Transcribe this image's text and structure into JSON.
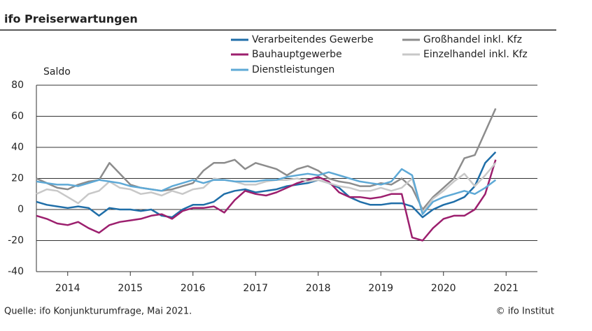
{
  "chart_data": {
    "type": "line",
    "title": "ifo Preiserwartungen",
    "y_label": "Saldo",
    "source": "Quelle: ifo Konjunkturumfrage, Mai 2021.",
    "credit": "© ifo Institut",
    "x": [
      2014.0,
      2014.167,
      2014.333,
      2014.5,
      2014.667,
      2014.833,
      2015.0,
      2015.167,
      2015.333,
      2015.5,
      2015.667,
      2015.833,
      2016.0,
      2016.167,
      2016.333,
      2016.5,
      2016.667,
      2016.833,
      2017.0,
      2017.167,
      2017.333,
      2017.5,
      2017.667,
      2017.833,
      2018.0,
      2018.167,
      2018.333,
      2018.5,
      2018.667,
      2018.833,
      2019.0,
      2019.167,
      2019.333,
      2019.5,
      2019.667,
      2019.833,
      2020.0,
      2020.167,
      2020.333,
      2020.5,
      2020.667,
      2020.833,
      2021.0,
      2021.167,
      2021.333
    ],
    "series": [
      {
        "name": "Verarbeitendes Gewerbe",
        "color": "#1f6ea8",
        "values": [
          5,
          3,
          2,
          1,
          2,
          1,
          -4,
          1,
          0,
          0,
          -1,
          0,
          -4,
          -5,
          0,
          3,
          3,
          5,
          10,
          12,
          13,
          11,
          12,
          13,
          15,
          16,
          17,
          19,
          17,
          14,
          8,
          5,
          3,
          3,
          4,
          4,
          2,
          -5,
          0,
          3,
          5,
          8,
          15,
          30,
          37
        ]
      },
      {
        "name": "Großhandel inkl. Kfz",
        "color": "#8c8c8c",
        "values": [
          20,
          17,
          14,
          13,
          16,
          18,
          19,
          30,
          23,
          16,
          14,
          13,
          12,
          13,
          15,
          17,
          25,
          30,
          30,
          32,
          26,
          30,
          28,
          26,
          22,
          26,
          28,
          25,
          20,
          18,
          17,
          15,
          15,
          17,
          16,
          20,
          14,
          0,
          8,
          14,
          20,
          33,
          35,
          50,
          65
        ]
      },
      {
        "name": "Bauhauptgewerbe",
        "color": "#9c1f6e",
        "values": [
          -4,
          -6,
          -9,
          -10,
          -8,
          -12,
          -15,
          -10,
          -8,
          -7,
          -6,
          -4,
          -3,
          -6,
          -1,
          1,
          1,
          2,
          -2,
          6,
          12,
          10,
          9,
          11,
          14,
          17,
          19,
          21,
          18,
          11,
          8,
          8,
          7,
          8,
          10,
          10,
          -18,
          -20,
          -12,
          -6,
          -4,
          -4,
          0,
          10,
          32
        ]
      },
      {
        "name": "Einzelhandel inkl. Kfz",
        "color": "#c8c8c8",
        "values": [
          10,
          13,
          12,
          8,
          4,
          10,
          12,
          18,
          14,
          13,
          10,
          11,
          9,
          12,
          10,
          13,
          14,
          20,
          19,
          18,
          16,
          16,
          18,
          19,
          19,
          20,
          18,
          19,
          17,
          15,
          14,
          12,
          12,
          14,
          12,
          14,
          20,
          -2,
          7,
          12,
          18,
          23,
          15,
          22,
          30
        ]
      },
      {
        "name": "Dienstleistungen",
        "color": "#5ea9d6",
        "values": [
          18,
          17,
          16,
          16,
          15,
          17,
          19,
          18,
          17,
          15,
          14,
          13,
          12,
          15,
          17,
          19,
          17,
          19,
          19,
          18,
          18,
          18,
          19,
          19,
          21,
          22,
          23,
          22,
          24,
          22,
          20,
          18,
          17,
          16,
          18,
          26,
          22,
          -3,
          5,
          8,
          10,
          12,
          10,
          14,
          19
        ]
      }
    ],
    "xlim": [
      2014,
      2022
    ],
    "xticks": [
      {
        "value": 2014.5,
        "label": "2014"
      },
      {
        "value": 2015.5,
        "label": "2015"
      },
      {
        "value": 2016.5,
        "label": "2016"
      },
      {
        "value": 2017.5,
        "label": "2017"
      },
      {
        "value": 2018.5,
        "label": "2018"
      },
      {
        "value": 2019.5,
        "label": "2019"
      },
      {
        "value": 2020.5,
        "label": "2020"
      },
      {
        "value": 2021.5,
        "label": "2021"
      }
    ],
    "ylim": [
      -40,
      80
    ],
    "yticks": [
      -40,
      -20,
      0,
      20,
      40,
      60,
      80
    ],
    "grid": true
  }
}
